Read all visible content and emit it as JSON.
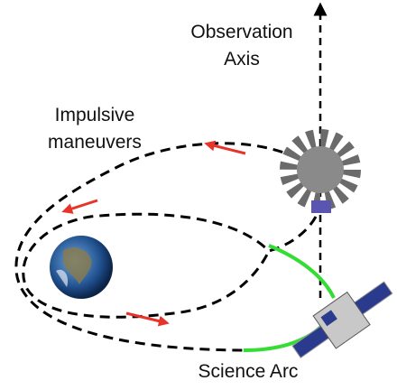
{
  "labels": {
    "observation_axis": [
      "Observation",
      "Axis"
    ],
    "impulsive_maneuvers": [
      "Impulsive",
      "maneuvers"
    ],
    "science_arc": "Science Arc"
  }
}
